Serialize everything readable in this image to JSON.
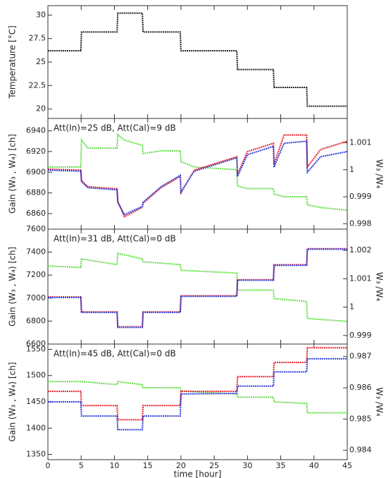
{
  "chart_data": [
    {
      "type": "line",
      "ylabel": "Temperature [°C]",
      "x": [
        0,
        4.95,
        5.05,
        10.4,
        10.5,
        14.2,
        14.3,
        19.9,
        20,
        28.4,
        28.5,
        33.9,
        34,
        38.9,
        39,
        45
      ],
      "xlim": [
        0,
        45
      ],
      "ylim": [
        19,
        31
      ],
      "yticks": [
        20,
        22.5,
        25,
        27.5,
        30
      ],
      "series": [
        {
          "color": "#222222",
          "values": [
            26.2,
            26.2,
            28.2,
            28.2,
            30.2,
            30.2,
            28.2,
            28.2,
            26.2,
            26.2,
            24.2,
            24.2,
            22.3,
            22.3,
            20.3,
            20.3
          ]
        }
      ]
    },
    {
      "type": "line",
      "annotation": "Att(In)=25 dB, Att(Cal)=9 dB",
      "ylabel": "Gain (W₃ , W₄) [ch]",
      "y2label": "W₃ /W₄",
      "x": [
        0,
        4.95,
        5.05,
        6,
        10.4,
        10.5,
        11.5,
        14.2,
        14.3,
        17,
        19.9,
        20,
        22,
        28.4,
        28.5,
        30,
        33.9,
        34,
        35.5,
        38.9,
        39,
        41,
        45
      ],
      "xlim": [
        0,
        45
      ],
      "ylim": [
        6845,
        6952
      ],
      "yticks": [
        6860,
        6880,
        6900,
        6920,
        6940
      ],
      "y2lim": [
        0.9978,
        1.0019
      ],
      "y2ticks": [
        0.998,
        0.999,
        1,
        1.001
      ],
      "series": [
        {
          "color": "#66dd4a",
          "axis": "y2",
          "values": [
            1.0001,
            1.0001,
            1.0011,
            1.0008,
            1.0008,
            1.0013,
            1.0011,
            1.0009,
            1.0006,
            1.0007,
            1.0007,
            1.0003,
            1.0001,
            1.0,
            0.9994,
            0.9993,
            0.9993,
            0.9991,
            0.999,
            0.999,
            0.9987,
            0.9986,
            0.9985
          ]
        },
        {
          "color": "#e8202a",
          "values": [
            6903,
            6902,
            6892,
            6886,
            6884,
            6872,
            6857,
            6866,
            6870,
            6885,
            6896,
            6880,
            6902,
            6915,
            6898,
            6920,
            6928,
            6908,
            6936,
            6936,
            6905,
            6922,
            6930
          ]
        },
        {
          "color": "#2b3bd6",
          "values": [
            6902,
            6901,
            6891,
            6885,
            6883,
            6871,
            6859,
            6867,
            6871,
            6886,
            6897,
            6881,
            6901,
            6914,
            6896,
            6917,
            6925,
            6905,
            6928,
            6930,
            6900,
            6915,
            6920
          ]
        }
      ]
    },
    {
      "type": "line",
      "annotation": "Att(In)=31 dB, Att(Cal)=0 dB",
      "ylabel": "Gain (W₃ , W₄) [ch]",
      "y2label": "W₃ /W₄",
      "x": [
        0,
        4.95,
        5.05,
        10.4,
        10.5,
        14.2,
        14.3,
        19.9,
        20,
        28.4,
        28.5,
        33.9,
        34,
        38.9,
        39,
        45
      ],
      "xlim": [
        0,
        45
      ],
      "ylim": [
        6600,
        7600
      ],
      "yticks": [
        6600,
        6800,
        7000,
        7200,
        7400,
        7600
      ],
      "y2lim": [
        0.9987,
        1.00275
      ],
      "y2ticks": [
        0.999,
        1,
        1.001,
        1.002
      ],
      "series": [
        {
          "color": "#66dd4a",
          "axis": "y2",
          "values": [
            1.00145,
            1.0014,
            1.0017,
            1.0015,
            1.0019,
            1.0017,
            1.0016,
            1.0015,
            1.0013,
            1.0012,
            1.0006,
            1.0006,
            1.0003,
            1.0002,
            0.9996,
            0.9995
          ]
        },
        {
          "color": "#e8202a",
          "values": [
            7010,
            7010,
            6880,
            6880,
            6750,
            6750,
            6880,
            6880,
            7020,
            7020,
            7160,
            7160,
            7290,
            7290,
            7430,
            7430
          ]
        },
        {
          "color": "#2b3bd6",
          "values": [
            7005,
            7005,
            6875,
            6875,
            6745,
            6745,
            6875,
            6875,
            7015,
            7015,
            7155,
            7155,
            7285,
            7285,
            7425,
            7425
          ]
        }
      ]
    },
    {
      "type": "line",
      "annotation": "Att(In)=45 dB, Att(Cal)=0 dB",
      "ylabel": "Gain (W₃ , W₄) [ch]",
      "y2label": "W₃ /W₄",
      "xlabel": "time [hour]",
      "x": [
        0,
        4.95,
        5.05,
        10.4,
        10.5,
        14.2,
        14.3,
        19.9,
        20,
        28.4,
        28.5,
        33.9,
        34,
        38.9,
        39,
        45
      ],
      "xlim": [
        0,
        45
      ],
      "xticks": [
        0,
        5,
        10,
        15,
        20,
        25,
        30,
        35,
        40,
        45
      ],
      "ylim": [
        1340,
        1560
      ],
      "yticks": [
        1350,
        1400,
        1450,
        1500,
        1550
      ],
      "y2lim": [
        0.9837,
        0.9874
      ],
      "y2ticks": [
        0.984,
        0.985,
        0.986,
        0.987
      ],
      "series": [
        {
          "color": "#66dd4a",
          "axis": "y2",
          "values": [
            0.9862,
            0.9862,
            0.9862,
            0.9861,
            0.9862,
            0.9861,
            0.986,
            0.986,
            0.9859,
            0.9858,
            0.9857,
            0.9857,
            0.98555,
            0.9855,
            0.9852,
            0.9852
          ]
        },
        {
          "color": "#e8202a",
          "values": [
            1470,
            1470,
            1443,
            1443,
            1416,
            1416,
            1443,
            1443,
            1470,
            1470,
            1498,
            1498,
            1525,
            1525,
            1553,
            1553
          ]
        },
        {
          "color": "#2b3bd6",
          "values": [
            1450,
            1450,
            1423,
            1423,
            1397,
            1397,
            1423,
            1423,
            1465,
            1466,
            1480,
            1480,
            1507,
            1507,
            1532,
            1532
          ]
        }
      ]
    }
  ]
}
